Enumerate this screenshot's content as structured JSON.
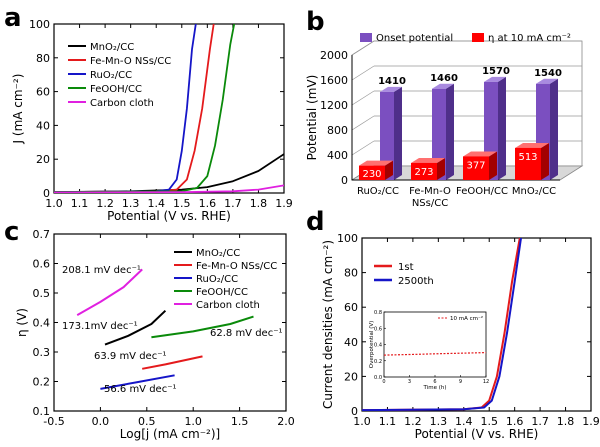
{
  "panels": {
    "a": "a",
    "b": "b",
    "c": "c",
    "d": "d"
  },
  "chart_data": [
    {
      "panel": "a",
      "type": "line",
      "xlabel": "Potential (V vs. RHE)",
      "ylabel": "J (mA cm⁻²)",
      "xlim": [
        1.0,
        1.9
      ],
      "ylim": [
        0,
        100
      ],
      "xticks": [
        1.0,
        1.1,
        1.2,
        1.3,
        1.4,
        1.5,
        1.6,
        1.7,
        1.8,
        1.9
      ],
      "yticks": [
        0,
        20,
        40,
        60,
        80,
        100
      ],
      "legend_position": "top-left",
      "series": [
        {
          "name": "MnO₂/CC",
          "color": "#000000",
          "x": [
            1.0,
            1.3,
            1.5,
            1.6,
            1.7,
            1.8,
            1.9
          ],
          "y": [
            0.5,
            1.0,
            2.0,
            3.5,
            7.0,
            13.0,
            23.0
          ]
        },
        {
          "name": "Fe-Mn-O NSs/CC",
          "color": "#e41a1c",
          "x": [
            1.0,
            1.4,
            1.48,
            1.52,
            1.55,
            1.58,
            1.61,
            1.625
          ],
          "y": [
            0.5,
            1.0,
            2.0,
            8.0,
            25.0,
            50.0,
            85.0,
            100.0
          ]
        },
        {
          "name": "RuO₂/CC",
          "color": "#1515c8",
          "x": [
            1.0,
            1.4,
            1.45,
            1.48,
            1.5,
            1.52,
            1.54,
            1.555
          ],
          "y": [
            0.5,
            1.0,
            2.0,
            8.0,
            25.0,
            50.0,
            85.0,
            100.0
          ]
        },
        {
          "name": "FeOOH/CC",
          "color": "#0a8a0a",
          "x": [
            1.0,
            1.5,
            1.56,
            1.6,
            1.63,
            1.66,
            1.69,
            1.705
          ],
          "y": [
            0.5,
            1.0,
            3.0,
            10.0,
            28.0,
            55.0,
            88.0,
            100.0
          ]
        },
        {
          "name": "Carbon cloth",
          "color": "#e020e0",
          "x": [
            1.0,
            1.5,
            1.7,
            1.8,
            1.9
          ],
          "y": [
            0.3,
            0.5,
            1.0,
            2.0,
            4.5
          ]
        }
      ]
    },
    {
      "panel": "b",
      "type": "bar",
      "ylabel": "Potential (mV)",
      "ylim": [
        0,
        2000
      ],
      "yticks": [
        0,
        400,
        800,
        1200,
        1600,
        2000
      ],
      "categories": [
        "RuO₂/CC",
        "Fe-Mn-O NSs/CC",
        "FeOOH/CC",
        "MnO₂/CC"
      ],
      "legend_position": "top",
      "series": [
        {
          "name": "Onset potential",
          "color": "#7b4fc0",
          "values": [
            1410,
            1460,
            1570,
            1540
          ]
        },
        {
          "name": "η at 10 mA cm⁻²",
          "color": "#ff0000",
          "values": [
            230,
            273,
            377,
            513
          ]
        }
      ]
    },
    {
      "panel": "c",
      "type": "line",
      "xlabel": "Log[j (mA cm⁻²)]",
      "ylabel": "η (V)",
      "xlim": [
        -0.5,
        2.0
      ],
      "ylim": [
        0.1,
        0.7
      ],
      "xticks": [
        -0.5,
        0.0,
        0.5,
        1.0,
        1.5,
        2.0
      ],
      "yticks": [
        0.1,
        0.2,
        0.3,
        0.4,
        0.5,
        0.6,
        0.7
      ],
      "legend_position": "top-right",
      "series": [
        {
          "name": "MnO₂/CC",
          "color": "#000000",
          "x": [
            0.05,
            0.3,
            0.55,
            0.7
          ],
          "y": [
            0.325,
            0.355,
            0.395,
            0.44
          ]
        },
        {
          "name": "Fe-Mn-O NSs/CC",
          "color": "#e41a1c",
          "x": [
            0.45,
            0.7,
            1.1
          ],
          "y": [
            0.243,
            0.258,
            0.285
          ]
        },
        {
          "name": "RuO₂/CC",
          "color": "#1515c8",
          "x": [
            0.0,
            0.4,
            0.8
          ],
          "y": [
            0.175,
            0.198,
            0.221
          ]
        },
        {
          "name": "FeOOH/CC",
          "color": "#0a8a0a",
          "x": [
            0.55,
            1.0,
            1.4,
            1.65
          ],
          "y": [
            0.35,
            0.37,
            0.395,
            0.42
          ]
        },
        {
          "name": "Carbon cloth",
          "color": "#e020e0",
          "x": [
            -0.25,
            0.0,
            0.25,
            0.45
          ],
          "y": [
            0.425,
            0.47,
            0.52,
            0.58
          ]
        }
      ],
      "annotations": [
        "208.1 mV dec⁻¹",
        "173.1mV dec⁻¹",
        "62.8 mV dec⁻¹",
        "63.9 mV dec⁻¹",
        "56.6 mV dec⁻¹"
      ]
    },
    {
      "panel": "d",
      "type": "line",
      "xlabel": "Potential (V vs. RHE)",
      "ylabel": "Current densities (mA cm⁻²)",
      "xlim": [
        1.0,
        1.9
      ],
      "ylim": [
        0,
        100
      ],
      "xticks": [
        1.0,
        1.1,
        1.2,
        1.3,
        1.4,
        1.5,
        1.6,
        1.7,
        1.8,
        1.9
      ],
      "yticks": [
        0,
        20,
        40,
        60,
        80,
        100
      ],
      "legend_position": "top-left",
      "series": [
        {
          "name": "1st",
          "color": "#e41a1c",
          "x": [
            1.0,
            1.4,
            1.47,
            1.5,
            1.53,
            1.56,
            1.59,
            1.62
          ],
          "y": [
            0.5,
            1.0,
            2.0,
            6.0,
            20.0,
            45.0,
            75.0,
            100.0
          ]
        },
        {
          "name": "2500th",
          "color": "#1515c8",
          "x": [
            1.0,
            1.4,
            1.48,
            1.51,
            1.54,
            1.57,
            1.6,
            1.625
          ],
          "y": [
            0.5,
            1.0,
            2.0,
            6.0,
            20.0,
            45.0,
            75.0,
            100.0
          ]
        }
      ],
      "inset": {
        "type": "line",
        "xlabel": "Time (h)",
        "ylabel": "Overpotential (V)",
        "xlim": [
          0,
          12
        ],
        "ylim": [
          0,
          0.8
        ],
        "xticks": [
          0,
          3,
          6,
          9,
          12
        ],
        "yticks": [
          0,
          0.2,
          0.4,
          0.6,
          0.8
        ],
        "series": [
          {
            "name": "10 mA cm⁻²",
            "color": "#e41a1c",
            "x": [
              0,
              2,
              4,
              6,
              8,
              10,
              12
            ],
            "y": [
              0.27,
              0.275,
              0.28,
              0.285,
              0.29,
              0.295,
              0.3
            ]
          }
        ]
      }
    }
  ]
}
